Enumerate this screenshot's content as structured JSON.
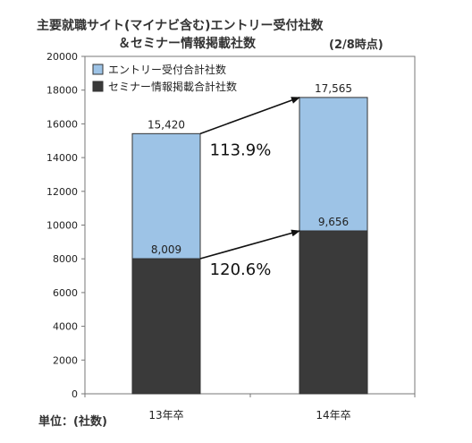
{
  "header": {
    "title_line1": "主要就職サイト(マイナビ含む)エントリー受付社数",
    "title_line2": "＆セミナー情報掲載社数",
    "date_note": "(2/8時点)"
  },
  "footer": {
    "unit_label": "単位：(社数)"
  },
  "colors": {
    "entry": "#9dc3e6",
    "seminar": "#3a3a3a",
    "plot_border": "#777777"
  },
  "chart_data": {
    "type": "bar",
    "stacked": false,
    "categories": [
      "13年卒",
      "14年卒"
    ],
    "series": [
      {
        "name": "エントリー受付合計社数",
        "values": [
          15420,
          17565
        ],
        "labels": [
          "15,420",
          "17,565"
        ]
      },
      {
        "name": "セミナー情報掲載合計社数",
        "values": [
          8009,
          9656
        ],
        "labels": [
          "8,009",
          "9,656"
        ]
      }
    ],
    "ylim": [
      0,
      20000
    ],
    "yticks": [
      0,
      2000,
      4000,
      6000,
      8000,
      10000,
      12000,
      14000,
      16000,
      18000,
      20000
    ],
    "legend_position": "top-left",
    "annotations": [
      {
        "text": "113.9%",
        "from_category": 0,
        "to_category": 1,
        "series": 0
      },
      {
        "text": "120.6%",
        "from_category": 0,
        "to_category": 1,
        "series": 1
      }
    ],
    "grid": false
  }
}
